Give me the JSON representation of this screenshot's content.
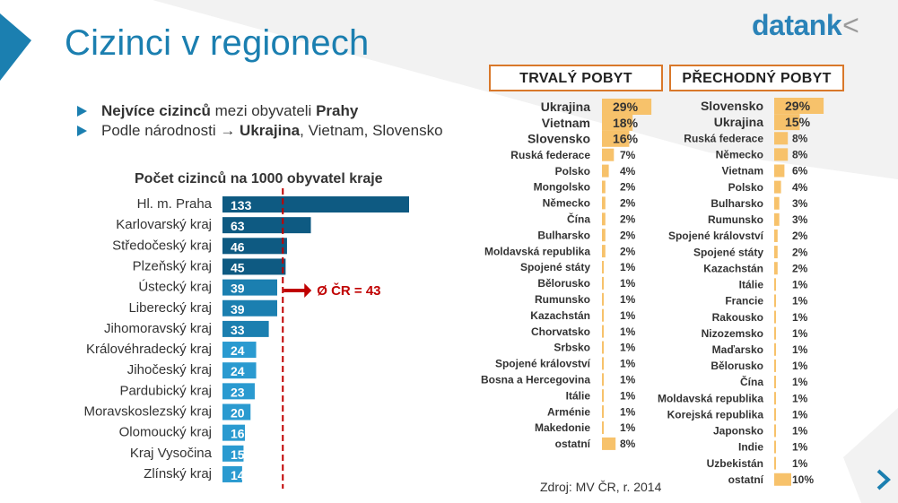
{
  "title": "Cizinci v regionech",
  "logo": {
    "text": "datank",
    "mark": "<"
  },
  "bullets": [
    {
      "b1": "Nejvíce cizinců",
      "t1": " mezi obyvateli ",
      "b2": "Prahy",
      "t2": ""
    },
    {
      "b1": "",
      "t1": "Podle národnosti → ",
      "b2": "Ukrajina",
      "t2": ", Vietnam, Slovensko"
    }
  ],
  "colors": {
    "title_blue": "#1b7fb0",
    "bar_dark": "#0e5a82",
    "bar_mid": "#1b7fb0",
    "bar_light": "#2a9ad0",
    "avg_line": "#c00000",
    "orange_box": "#d9782a",
    "pct_bar": "#f7c26b"
  },
  "chart_data": [
    {
      "type": "bar",
      "title": "Počet cizinců na 1000 obyvatel kraje",
      "categories": [
        "Hl. m. Praha",
        "Karlovarský kraj",
        "Středočeský kraj",
        "Plzeňský kraj",
        "Ústecký kraj",
        "Liberecký kraj",
        "Jihomoravský kraj",
        "Královéhradecký kraj",
        "Jihočeský kraj",
        "Pardubický kraj",
        "Moravskoslezský kraj",
        "Olomoucký kraj",
        "Kraj Vysočina",
        "Zlínský kraj"
      ],
      "values": [
        133,
        63,
        46,
        45,
        39,
        39,
        33,
        24,
        24,
        23,
        20,
        16,
        15,
        14
      ],
      "average_label": "Ø ČR = 43",
      "average_value": 43
    },
    {
      "type": "bar",
      "title": "TRVALÝ POBYT",
      "categories": [
        "Ukrajina",
        "Vietnam",
        "Slovensko",
        "Ruská federace",
        "Polsko",
        "Mongolsko",
        "Německo",
        "Čína",
        "Bulharsko",
        "Moldavská republika",
        "Spojené státy",
        "Bělorusko",
        "Rumunsko",
        "Kazachstán",
        "Chorvatsko",
        "Srbsko",
        "Spojené království",
        "Bosna a Hercegovina",
        "Itálie",
        "Arménie",
        "Makedonie",
        "ostatní"
      ],
      "values": [
        29,
        18,
        16,
        7,
        4,
        2,
        2,
        2,
        2,
        2,
        1,
        1,
        1,
        1,
        1,
        1,
        1,
        1,
        1,
        1,
        1,
        8
      ],
      "labels": [
        "29%",
        "18%",
        "16%",
        "7%",
        "4%",
        "2%",
        "2%",
        "2%",
        "2%",
        "2%",
        "1%",
        "1%",
        "1%",
        "1%",
        "1%",
        "1%",
        "1%",
        "1%",
        "1%",
        "1%",
        "1%",
        "8%"
      ]
    },
    {
      "type": "bar",
      "title": "PŘECHODNÝ POBYT",
      "categories": [
        "Slovensko",
        "Ukrajina",
        "Ruská federace",
        "Německo",
        "Vietnam",
        "Polsko",
        "Bulharsko",
        "Rumunsko",
        "Spojené království",
        "Spojené státy",
        "Kazachstán",
        "Itálie",
        "Francie",
        "Rakousko",
        "Nizozemsko",
        "Maďarsko",
        "Bělorusko",
        "Čína",
        "Moldavská republika",
        "Korejská republika",
        "Japonsko",
        "Indie",
        "Uzbekistán",
        "ostatní"
      ],
      "values": [
        29,
        15,
        8,
        8,
        6,
        4,
        3,
        3,
        2,
        2,
        2,
        1,
        1,
        1,
        1,
        1,
        1,
        1,
        1,
        1,
        1,
        1,
        1,
        10
      ],
      "labels": [
        "29%",
        "15%",
        "8%",
        "8%",
        "6%",
        "4%",
        "3%",
        "3%",
        "2%",
        "2%",
        "2%",
        "1%",
        "1%",
        "1%",
        "1%",
        "1%",
        "1%",
        "1%",
        "1%",
        "1%",
        "1%",
        "1%",
        "1%",
        "10%"
      ]
    }
  ],
  "source": "Zdroj:  MV ČR, r. 2014",
  "icons": {
    "next": "chevron-right-icon"
  }
}
